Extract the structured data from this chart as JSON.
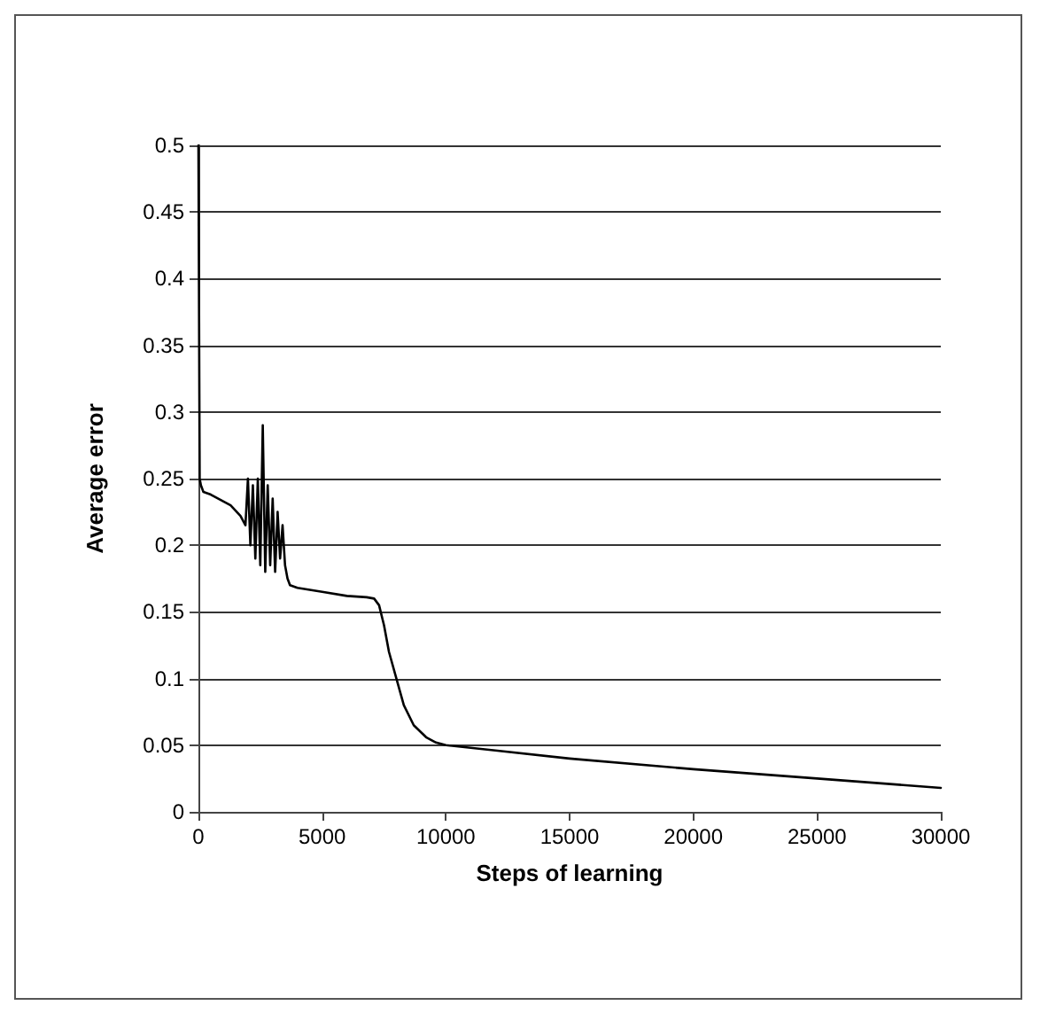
{
  "chart_data": {
    "type": "line",
    "xlabel": "Steps of learning",
    "ylabel": "Average error",
    "series": [
      {
        "color": "#000000",
        "x": [
          0,
          20,
          50,
          100,
          200,
          500,
          800,
          1100,
          1300,
          1500,
          1700,
          1900,
          2000,
          2100,
          2200,
          2300,
          2400,
          2500,
          2600,
          2700,
          2800,
          2900,
          3000,
          3100,
          3200,
          3300,
          3400,
          3500,
          3600,
          3700,
          4000,
          5000,
          6000,
          6800,
          7100,
          7300,
          7500,
          7700,
          8000,
          8300,
          8700,
          9200,
          9600,
          10000,
          12000,
          15000,
          20000,
          25000,
          30000
        ],
        "values": [
          0.5,
          0.5,
          0.25,
          0.245,
          0.24,
          0.238,
          0.235,
          0.232,
          0.23,
          0.226,
          0.222,
          0.215,
          0.25,
          0.2,
          0.245,
          0.19,
          0.25,
          0.185,
          0.29,
          0.18,
          0.245,
          0.185,
          0.235,
          0.18,
          0.225,
          0.19,
          0.215,
          0.185,
          0.175,
          0.17,
          0.168,
          0.165,
          0.162,
          0.161,
          0.16,
          0.155,
          0.14,
          0.12,
          0.1,
          0.08,
          0.065,
          0.056,
          0.052,
          0.05,
          0.046,
          0.04,
          0.032,
          0.025,
          0.018
        ]
      }
    ],
    "xlim": [
      0,
      30000
    ],
    "xticks": [
      0,
      5000,
      10000,
      15000,
      20000,
      25000,
      30000
    ],
    "ylim": [
      0,
      0.5
    ],
    "yticks": [
      0,
      0.05,
      0.1,
      0.15,
      0.2,
      0.25,
      0.3,
      0.35,
      0.4,
      0.45,
      0.5
    ],
    "grid": "y",
    "marker": "none",
    "line_style": "solid"
  }
}
